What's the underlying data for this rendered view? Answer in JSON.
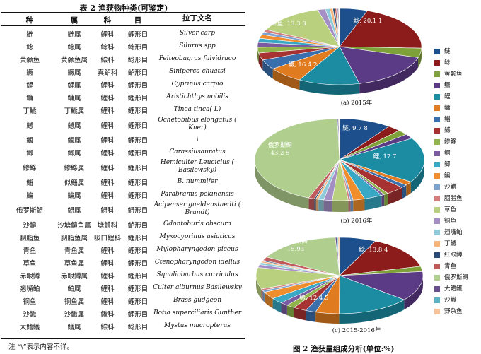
{
  "table": {
    "title": "表 2  渔获物种类(可鉴定)",
    "headers": [
      "种",
      "属",
      "科",
      "目",
      "拉丁文名"
    ],
    "rows": [
      [
        "鲢",
        "鲢属",
        "鲤科",
        "鲤形目",
        "Silver carp"
      ],
      [
        "鲶",
        "鲶属",
        "鲶科",
        "鲶形目",
        "Silurus spp"
      ],
      [
        "黄颡鱼",
        "黄颡鱼属",
        "鲿科",
        "鲶形目",
        "Pelteobagrus fulvidraco"
      ],
      [
        "鳜",
        "鳜属",
        "真鲈科",
        "鲈形目",
        "Siniperca chuatsi"
      ],
      [
        "鲤",
        "鲤属",
        "鲤科",
        "鲤形目",
        "Cyprinus carpio"
      ],
      [
        "鳙",
        "鳙属",
        "鲤科",
        "鲤形目",
        "Aristichthys nobilis"
      ],
      [
        "丁鱥",
        "丁鱥属",
        "鲤科",
        "鲤形目",
        "Tinca tinca( L)"
      ],
      [
        "鳡",
        "鳡属",
        "鲤科",
        "鲤形目",
        "Ochetobibus elongatus ( Kner)"
      ],
      [
        "鲴",
        "鲴属",
        "鲤科",
        "鲤形目",
        "\\"
      ],
      [
        "鲫",
        "鲫属",
        "鲤科",
        "鲤形目",
        "Carassiusauratus"
      ],
      [
        "鲹鲦",
        "鲹鲦属",
        "鲤科",
        "鲤形目",
        "Hemiculter Leuciclus ( Basilewsky)"
      ],
      [
        "鲻",
        "似鲻属",
        "鲤科",
        "鲤形目",
        "B. nummifer"
      ],
      [
        "鳊",
        "鳊属",
        "鲤科",
        "鲤形目",
        "Parabramis pekinensis"
      ],
      [
        "俄罗斯鲟",
        "鲟属",
        "鲟科",
        "鲟形目",
        "Acipenser gueldenstaedti ( Brandt)"
      ],
      [
        "沙鳢",
        "沙塘鳢鱼属",
        "塘鳢科",
        "鲈形目",
        "Odontoburis obscura"
      ],
      [
        "胭脂鱼",
        "胭脂鱼属",
        "吸口鲤科",
        "鲤形目",
        "Myxocyprinus asiaticus"
      ],
      [
        "青鱼",
        "青鱼属",
        "鲤科",
        "鲤形目",
        "Mylopharyngodon piceus"
      ],
      [
        "草鱼",
        "草鱼属",
        "鲤科",
        "鲤形目",
        "Ctenopharyngodon idellus"
      ],
      [
        "赤眼鳟",
        "赤眼鳟属",
        "鲤科",
        "鲤形目",
        "Squaliobarbus curriculus"
      ],
      [
        "翘嘴鲌",
        "鲌属",
        "鲤科",
        "鲤形目",
        "Culter alburnus Basilewsky"
      ],
      [
        "铜鱼",
        "铜鱼属",
        "鲤科",
        "鲤形目",
        "Brass gudgeon"
      ],
      [
        "沙鳅",
        "沙鳅属",
        "鳅科",
        "鲤形目",
        "Botia superciliaris Gunther"
      ],
      [
        "大鳍鳠",
        "鳠属",
        "鲿科",
        "鲶形目",
        "Mystus macropterus"
      ]
    ],
    "note": "注  “\\”表示内容不详。"
  },
  "figure": {
    "title": "图 2  渔获量组成分析(单位:%)",
    "legend": [
      "鲢",
      "鲶",
      "黄颡鱼",
      "鳜",
      "鲤",
      "鳙",
      "鲻",
      "鳡",
      "鲹鲦",
      "鲴",
      "鲫",
      "鳊",
      "沙鳢",
      "胭脂鱼",
      "草鱼",
      "铜鱼",
      "翘嘴鲌",
      "丁鱥",
      "红眼鳟",
      "青鱼",
      "俄罗斯鲟",
      "大鳍鳠",
      "沙鳅",
      "野杂鱼"
    ],
    "colors": [
      "#1d4f8c",
      "#8c1c1c",
      "#7ea13a",
      "#5b3b86",
      "#1c8ca2",
      "#e07b20",
      "#3a6fae",
      "#a63232",
      "#90b44a",
      "#7a5aa0",
      "#39a8c4",
      "#f08d2c",
      "#7ca2cf",
      "#d47f7f",
      "#b9d17e",
      "#a58ec4",
      "#8fcbd9",
      "#f5b57a",
      "#284a76",
      "#c15a5a",
      "#b0cf8e",
      "#6a4f8f",
      "#5bb2c6",
      "#f7c49c"
    ]
  },
  "chart_data": [
    {
      "type": "pie",
      "title": "(a) 2015年",
      "labeled": [
        {
          "name": "鲶",
          "value": 20.11,
          "label": "鲶, 20.1 1"
        },
        {
          "name": "鳜",
          "value": 16.42,
          "label": "鳜, 16.4 2"
        },
        {
          "name": "草鱼",
          "value": 13.33,
          "label": "草鱼, 13.3 3"
        }
      ],
      "values": [
        5.5,
        20.11,
        4.0,
        16.42,
        12.0,
        7.0,
        4.2,
        3.0,
        2.4,
        2.0,
        1.8,
        1.6,
        1.2,
        1.0,
        13.33,
        1.5,
        0.9,
        0.6,
        0.4,
        0.3,
        0.2,
        0.2,
        0.1,
        0.1
      ]
    },
    {
      "type": "pie",
      "title": "(b) 2016年",
      "labeled": [
        {
          "name": "鲢",
          "value": 9.78,
          "label": "鲢, 9.7 8"
        },
        {
          "name": "鲤",
          "value": 17.7,
          "label": "鲤, 17.7"
        },
        {
          "name": "俄罗斯鲟",
          "value": 43.25,
          "label": "俄罗斯鲟, 43.2 5"
        }
      ],
      "values": [
        9.78,
        2.5,
        2.0,
        1.8,
        17.7,
        1.5,
        1.2,
        3.5,
        0.8,
        0.6,
        3.4,
        2.2,
        0.5,
        0.4,
        3.0,
        1.6,
        1.0,
        0.5,
        0.3,
        1.1,
        43.25,
        0.2,
        0.1,
        0.1
      ]
    },
    {
      "type": "pie",
      "title": "(c) 2015-2016年",
      "labeled": [
        {
          "name": "鲶",
          "value": 13.84,
          "label": "鲶, 13.8 4"
        },
        {
          "name": "鳜",
          "value": 12.45,
          "label": "鳜, 12.4 5"
        },
        {
          "name": "俄罗斯鲟",
          "value": 15.93,
          "label": "俄罗斯鲟, 15.93"
        }
      ],
      "values": [
        7.0,
        13.84,
        2.2,
        12.45,
        14.0,
        4.5,
        2.0,
        2.5,
        1.6,
        1.5,
        2.4,
        3.0,
        0.8,
        0.7,
        9.0,
        1.2,
        0.9,
        0.6,
        0.4,
        1.5,
        15.93,
        0.3,
        0.2,
        0.3
      ]
    }
  ]
}
